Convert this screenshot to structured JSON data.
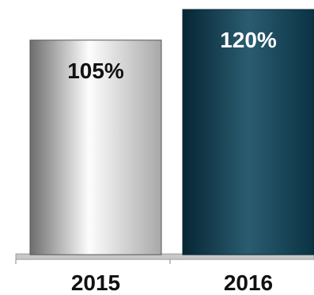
{
  "chart_data": {
    "type": "bar",
    "categories": [
      "2015",
      "2016"
    ],
    "values": [
      105,
      120
    ],
    "data_labels": [
      "105%",
      "120%"
    ],
    "title": "",
    "xlabel": "",
    "ylabel": "",
    "ylim": [
      0,
      120
    ],
    "grid": false,
    "legend": "none",
    "colors": {
      "bar_2015_light": "#fdfdfd",
      "bar_2015_dark": "#6d6d6d",
      "bar_2016_light": "#2a5c70",
      "bar_2016_dark": "#062634",
      "label_2015": "#111111",
      "label_2016": "#ffffff",
      "axis": "#9a9a9a"
    }
  }
}
